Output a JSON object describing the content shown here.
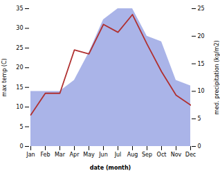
{
  "chart_data": {
    "type": "line",
    "xlabel": "date (month)",
    "ylabel": "max temp (C)",
    "y2label": "med. precipitation (kg/m2)",
    "categories": [
      "Jan",
      "Feb",
      "Mar",
      "Apr",
      "May",
      "Jun",
      "Jul",
      "Aug",
      "Sep",
      "Oct",
      "Nov",
      "Dec"
    ],
    "series": [
      {
        "type": "area",
        "axis": "y2",
        "color": "#aab4e8",
        "values": [
          10,
          10,
          10,
          12,
          17,
          23,
          25,
          25,
          20,
          19,
          12,
          11
        ]
      },
      {
        "type": "line",
        "color": "#b03030",
        "values": [
          8,
          13.5,
          13.5,
          24.5,
          23.5,
          31,
          29,
          33.5,
          26,
          19,
          13,
          10.5
        ]
      }
    ],
    "ylim": [
      0,
      35
    ],
    "yticks": [
      0,
      5,
      10,
      15,
      20,
      25,
      30,
      35
    ],
    "y2lim": [
      0,
      25
    ],
    "y2ticks": [
      0,
      5,
      10,
      15,
      20,
      25
    ]
  }
}
